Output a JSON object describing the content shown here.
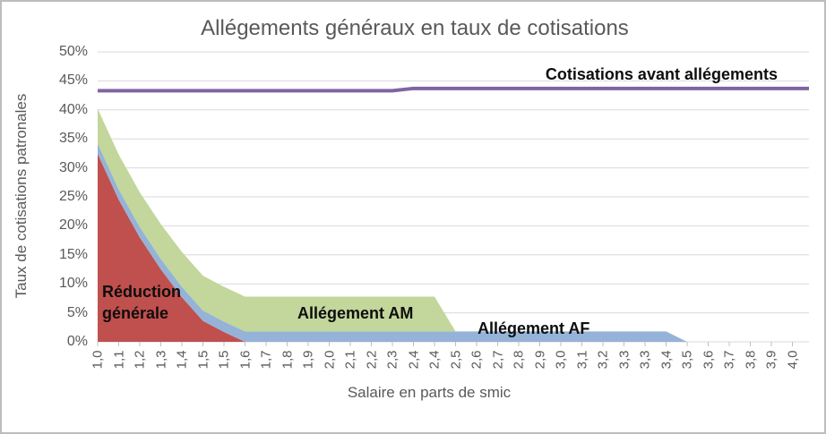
{
  "chart_data": {
    "type": "area",
    "stacked": true,
    "title": "Allégements généraux en taux de cotisations",
    "xlabel": "Salaire en parts de smic",
    "ylabel": "Taux de cotisations patronales",
    "ylim": [
      0,
      50
    ],
    "grid": "horizontal",
    "legend": "none (labels drawn on chart)",
    "y_tick_labels": [
      "0%",
      "5%",
      "10%",
      "15%",
      "20%",
      "25%",
      "30%",
      "35%",
      "40%",
      "45%",
      "50%"
    ],
    "categories": [
      "1,0",
      "1,1",
      "1,2",
      "1,3",
      "1,4",
      "1,5",
      "1,5",
      "1,6",
      "1,7",
      "1,8",
      "1,9",
      "2,0",
      "2,1",
      "2,2",
      "2,3",
      "2,4",
      "2,4",
      "2,5",
      "2,6",
      "2,7",
      "2,8",
      "2,9",
      "3,0",
      "3,1",
      "3,2",
      "3,3",
      "3,3",
      "3,4",
      "3,5",
      "3,6",
      "3,7",
      "3,8",
      "3,9",
      "4,0"
    ],
    "x_values": [
      1.0,
      1.1,
      1.2,
      1.3,
      1.4,
      1.5,
      1.55,
      1.6,
      1.7,
      1.8,
      1.9,
      2.0,
      2.1,
      2.2,
      2.3,
      2.4,
      2.45,
      2.5,
      2.6,
      2.7,
      2.8,
      2.9,
      3.0,
      3.1,
      3.2,
      3.3,
      3.35,
      3.4,
      3.5,
      3.6,
      3.7,
      3.8,
      3.9,
      4.0
    ],
    "unit": "percent of gross salary (taux de cotisations patronales)",
    "series": [
      {
        "name": "Réduction générale",
        "type": "area",
        "color": "#C0504D",
        "values": [
          32.4,
          24.5,
          18,
          12.5,
          7.7,
          3.6,
          1.7,
          0,
          0,
          0,
          0,
          0,
          0,
          0,
          0,
          0,
          0,
          0,
          0,
          0,
          0,
          0,
          0,
          0,
          0,
          0,
          0,
          0,
          0,
          0,
          0,
          0,
          0,
          0
        ]
      },
      {
        "name": "Allégement AF",
        "type": "area",
        "color": "#95B3D7",
        "values": [
          1.8,
          1.8,
          1.8,
          1.8,
          1.8,
          1.8,
          1.8,
          1.8,
          1.8,
          1.8,
          1.8,
          1.8,
          1.8,
          1.8,
          1.8,
          1.8,
          1.8,
          1.8,
          1.8,
          1.8,
          1.8,
          1.8,
          1.8,
          1.8,
          1.8,
          1.8,
          1.8,
          1.8,
          0,
          0,
          0,
          0,
          0,
          0
        ]
      },
      {
        "name": "Allégement AM",
        "type": "area",
        "color": "#C3D69B",
        "values": [
          6,
          6,
          6,
          6,
          6,
          6,
          6,
          6,
          6,
          6,
          6,
          6,
          6,
          6,
          6,
          6,
          6,
          0,
          0,
          0,
          0,
          0,
          0,
          0,
          0,
          0,
          0,
          0,
          0,
          0,
          0,
          0,
          0,
          0
        ]
      },
      {
        "name": "Cotisations avant allégements",
        "type": "line",
        "color": "#8064A2",
        "values": [
          43.3,
          43.3,
          43.3,
          43.3,
          43.3,
          43.3,
          43.3,
          43.3,
          43.3,
          43.3,
          43.3,
          43.3,
          43.3,
          43.3,
          43.3,
          43.7,
          43.7,
          43.7,
          43.7,
          43.7,
          43.7,
          43.7,
          43.7,
          43.7,
          43.7,
          43.7,
          43.7,
          43.7,
          43.7,
          43.7,
          43.7,
          43.7,
          43.7,
          43.7
        ]
      }
    ],
    "colors": {
      "gridline": "#D9D9D9",
      "tick": "#BFBFBF",
      "axis_text": "#595959",
      "annotation_text": "#0d0d0d",
      "frame_border": "#BDBDBD"
    }
  }
}
